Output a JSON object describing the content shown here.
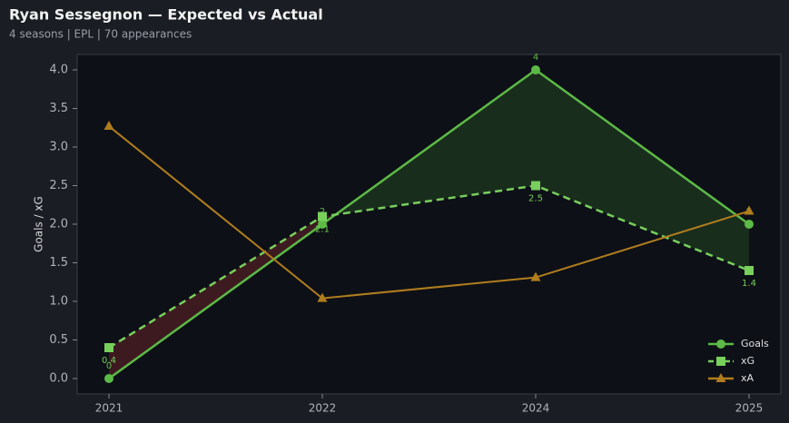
{
  "chart_data": {
    "type": "line",
    "title": "Ryan Sessegnon — Expected vs Actual",
    "subtitle": "4 seasons | EPL | 70 appearances",
    "ylabel": "Goals / xG",
    "categories": [
      "2021",
      "2022",
      "2024",
      "2025"
    ],
    "series": [
      {
        "name": "Goals",
        "color": "#5cb946",
        "marker": "circle",
        "dash": false,
        "data_labels": "above",
        "values": [
          0,
          2,
          4,
          2
        ]
      },
      {
        "name": "xG",
        "color": "#78cf5c",
        "marker": "square",
        "dash": true,
        "data_labels": "below",
        "values": [
          0.4,
          2.1,
          2.5,
          1.4
        ]
      },
      {
        "name": "xA",
        "color": "#b07d1e",
        "marker": "triangle",
        "dash": false,
        "values": [
          3.27,
          1.04,
          1.31,
          2.17
        ]
      }
    ],
    "fill_between": {
      "above_color": "rgba(70,150,55,0.22)",
      "below_color": "rgba(120,40,45,0.45)"
    },
    "ylim": [
      -0.2,
      4.2
    ],
    "yticks": [
      {
        "value": 0,
        "label": "0.0"
      },
      {
        "value": 0.5,
        "label": "0.5"
      },
      {
        "value": 1,
        "label": "1.0"
      },
      {
        "value": 1.5,
        "label": "1.5"
      },
      {
        "value": 2,
        "label": "2.0"
      },
      {
        "value": 2.5,
        "label": "2.5"
      },
      {
        "value": 3,
        "label": "3.0"
      },
      {
        "value": 3.5,
        "label": "3.5"
      },
      {
        "value": 4,
        "label": "4.0"
      }
    ],
    "legend": "lower right"
  }
}
